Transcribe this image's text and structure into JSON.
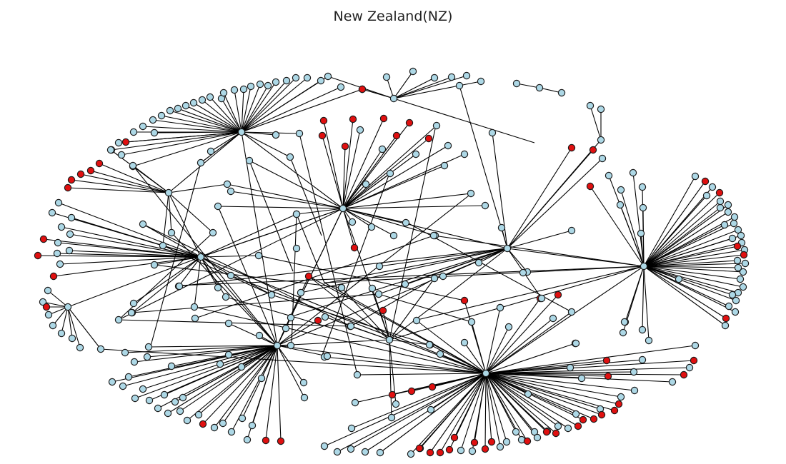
{
  "title": "New Zealand(NZ)",
  "colors": {
    "background": "#ffffff",
    "edge": "#000000",
    "node_outline": "#1a1a1a",
    "node_default": "#add8e6",
    "node_highlight": "#e01010"
  },
  "legend": "none",
  "graph": {
    "type": "network",
    "node_count_visible_approx": 340,
    "highlighted_node_count_approx": 55,
    "hub_count": 10
  }
}
